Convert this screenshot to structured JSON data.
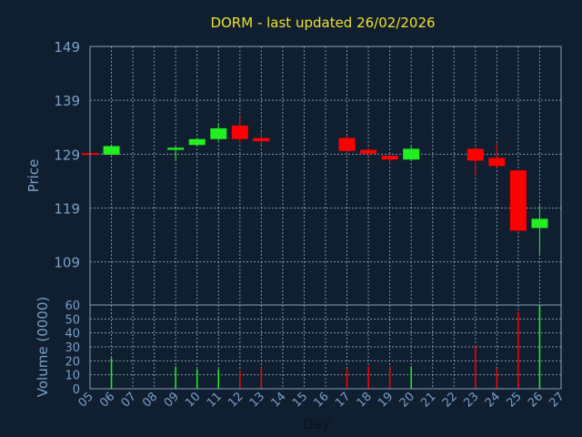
{
  "title": "DORM - last updated 26/02/2026",
  "colors": {
    "background": "#0f1f30",
    "up": "#22ee22",
    "down": "#ff0000",
    "title": "#f0e030",
    "axis_text": "#7a9fc8"
  },
  "chart_data": [
    {
      "type": "candlestick",
      "ylabel": "Price",
      "yticks": [
        "149",
        "139",
        "129",
        "119",
        "109"
      ],
      "ylim": [
        101,
        149
      ],
      "grid": true,
      "candles": [
        {
          "day": "05",
          "open": 129.2,
          "high": 129.4,
          "low": 128.8,
          "close": 128.9
        },
        {
          "day": "06",
          "open": 128.9,
          "high": 130.8,
          "low": 128.8,
          "close": 130.5
        },
        {
          "day": "09",
          "open": 129.8,
          "high": 130.4,
          "low": 127.8,
          "close": 130.2
        },
        {
          "day": "10",
          "open": 130.7,
          "high": 132.0,
          "low": 130.5,
          "close": 131.8
        },
        {
          "day": "11",
          "open": 131.8,
          "high": 134.6,
          "low": 131.5,
          "close": 133.8
        },
        {
          "day": "12",
          "open": 134.3,
          "high": 136.0,
          "low": 131.0,
          "close": 131.8
        },
        {
          "day": "13",
          "open": 132.0,
          "high": 133.0,
          "low": 130.8,
          "close": 131.4
        },
        {
          "day": "17",
          "open": 132.0,
          "high": 132.5,
          "low": 129.2,
          "close": 129.6
        },
        {
          "day": "18",
          "open": 129.8,
          "high": 130.2,
          "low": 128.7,
          "close": 129.1
        },
        {
          "day": "19",
          "open": 128.7,
          "high": 129.0,
          "low": 127.0,
          "close": 128.0
        },
        {
          "day": "20",
          "open": 128.0,
          "high": 130.5,
          "low": 127.8,
          "close": 130.0
        },
        {
          "day": "23",
          "open": 130.0,
          "high": 130.2,
          "low": 125.0,
          "close": 127.8
        },
        {
          "day": "24",
          "open": 128.3,
          "high": 131.0,
          "low": 126.5,
          "close": 126.8
        },
        {
          "day": "25",
          "open": 126.0,
          "high": 126.0,
          "low": 114.5,
          "close": 114.8
        },
        {
          "day": "26",
          "open": 115.3,
          "high": 119.5,
          "low": 110.5,
          "close": 117.0
        }
      ]
    },
    {
      "type": "bar",
      "ylabel": "Volume (0000)",
      "yticks": [
        "60",
        "50",
        "40",
        "30",
        "20",
        "10",
        "0"
      ],
      "ylim": [
        0,
        60
      ],
      "grid": true,
      "xlabel": "Day",
      "xticks": [
        "05",
        "06",
        "07",
        "08",
        "09",
        "10",
        "11",
        "12",
        "13",
        "14",
        "15",
        "16",
        "17",
        "18",
        "19",
        "20",
        "21",
        "22",
        "23",
        "24",
        "25",
        "26",
        "27"
      ],
      "volumes": [
        {
          "day": "06",
          "value": 22,
          "direction": "up"
        },
        {
          "day": "09",
          "value": 16,
          "direction": "up"
        },
        {
          "day": "10",
          "value": 14,
          "direction": "up"
        },
        {
          "day": "11",
          "value": 14,
          "direction": "up"
        },
        {
          "day": "12",
          "value": 13,
          "direction": "down"
        },
        {
          "day": "13",
          "value": 15,
          "direction": "down"
        },
        {
          "day": "17",
          "value": 14,
          "direction": "down"
        },
        {
          "day": "18",
          "value": 16,
          "direction": "down"
        },
        {
          "day": "19",
          "value": 16,
          "direction": "down"
        },
        {
          "day": "20",
          "value": 16,
          "direction": "up"
        },
        {
          "day": "23",
          "value": 31,
          "direction": "down"
        },
        {
          "day": "24",
          "value": 14,
          "direction": "down"
        },
        {
          "day": "25",
          "value": 55,
          "direction": "down"
        },
        {
          "day": "26",
          "value": 60,
          "direction": "up"
        }
      ]
    }
  ]
}
